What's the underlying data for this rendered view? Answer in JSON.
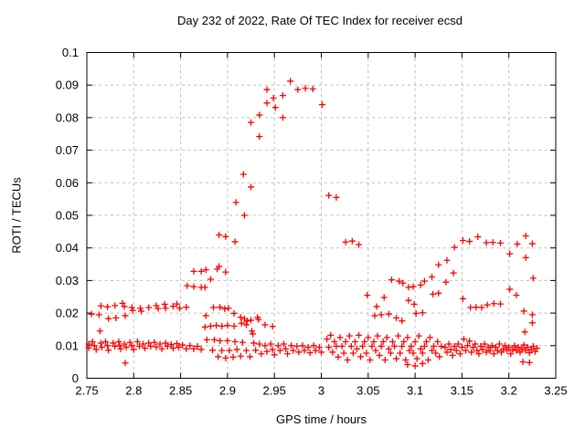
{
  "page": {
    "background": "#ffffff"
  },
  "chart_data": {
    "type": "scatter",
    "title": "Day 232 of 2022, Rate Of TEC Index for receiver ecsd",
    "xlabel": "GPS time / hours",
    "ylabel": "ROTI / TECUs",
    "xlim": [
      2.75,
      3.25
    ],
    "ylim": [
      0,
      0.1
    ],
    "xticks": {
      "values": [
        2.75,
        2.8,
        2.85,
        2.9,
        2.95,
        3.0,
        3.05,
        3.1,
        3.15,
        3.2,
        3.25
      ],
      "labels": [
        "2.75",
        "2.8",
        "2.85",
        "2.9",
        "2.95",
        "3",
        "3.05",
        "3.1",
        "3.15",
        "3.2",
        "3.25"
      ]
    },
    "yticks": {
      "values": [
        0,
        0.01,
        0.02,
        0.03,
        0.04,
        0.05,
        0.06,
        0.07,
        0.08,
        0.09,
        0.1
      ],
      "labels": [
        "0",
        "0.01",
        "0.02",
        "0.03",
        "0.04",
        "0.05",
        "0.06",
        "0.07",
        "0.08",
        "0.09",
        "0.1"
      ]
    },
    "grid": true,
    "legend": null,
    "styles": {
      "marker_shape": "plus",
      "marker_color": "#ff0000",
      "marker_size": 7,
      "grid_color": "#bdbdbd",
      "frame_color": "#000000",
      "text_color": "#000000"
    },
    "points": [
      [
        2.755,
        0.0197
      ],
      [
        2.763,
        0.0195
      ],
      [
        2.765,
        0.0222
      ],
      [
        2.772,
        0.0219
      ],
      [
        2.773,
        0.0183
      ],
      [
        2.78,
        0.0223
      ],
      [
        2.781,
        0.0185
      ],
      [
        2.788,
        0.023
      ],
      [
        2.79,
        0.022
      ],
      [
        2.791,
        0.0192
      ],
      [
        2.798,
        0.0217
      ],
      [
        2.799,
        0.0208
      ],
      [
        2.807,
        0.0215
      ],
      [
        2.808,
        0.0206
      ],
      [
        2.816,
        0.0217
      ],
      [
        2.824,
        0.0223
      ],
      [
        2.826,
        0.0214
      ],
      [
        2.833,
        0.0227
      ],
      [
        2.834,
        0.0215
      ],
      [
        2.842,
        0.0221
      ],
      [
        2.846,
        0.0228
      ],
      [
        2.849,
        0.0215
      ],
      [
        2.856,
        0.0218
      ],
      [
        2.857,
        0.0284
      ],
      [
        2.864,
        0.0281
      ],
      [
        2.872,
        0.0279
      ],
      [
        2.864,
        0.0328
      ],
      [
        2.872,
        0.0328
      ],
      [
        2.752,
        0.0105
      ],
      [
        2.752,
        0.0093
      ],
      [
        2.756,
        0.0112
      ],
      [
        2.758,
        0.01
      ],
      [
        2.76,
        0.0088
      ],
      [
        2.764,
        0.0145
      ],
      [
        2.765,
        0.0108
      ],
      [
        2.766,
        0.0095
      ],
      [
        2.77,
        0.0112
      ],
      [
        2.772,
        0.01
      ],
      [
        2.773,
        0.0086
      ],
      [
        2.778,
        0.0108
      ],
      [
        2.78,
        0.0098
      ],
      [
        2.784,
        0.0112
      ],
      [
        2.785,
        0.01
      ],
      [
        2.786,
        0.009
      ],
      [
        2.79,
        0.0105
      ],
      [
        2.791,
        0.0047
      ],
      [
        2.792,
        0.0095
      ],
      [
        2.796,
        0.011
      ],
      [
        2.798,
        0.01
      ],
      [
        2.8,
        0.0088
      ],
      [
        2.804,
        0.0112
      ],
      [
        2.806,
        0.0098
      ],
      [
        2.81,
        0.0105
      ],
      [
        2.812,
        0.0092
      ],
      [
        2.816,
        0.0108
      ],
      [
        2.818,
        0.0098
      ],
      [
        2.822,
        0.011
      ],
      [
        2.824,
        0.0096
      ],
      [
        2.828,
        0.0105
      ],
      [
        2.83,
        0.009
      ],
      [
        2.834,
        0.0108
      ],
      [
        2.836,
        0.0098
      ],
      [
        2.84,
        0.0104
      ],
      [
        2.842,
        0.0092
      ],
      [
        2.846,
        0.0106
      ],
      [
        2.848,
        0.0095
      ],
      [
        2.852,
        0.0102
      ],
      [
        2.856,
        0.009
      ],
      [
        2.86,
        0.01
      ],
      [
        2.864,
        0.009
      ],
      [
        2.868,
        0.0098
      ],
      [
        2.872,
        0.0088
      ],
      [
        2.876,
        0.0279
      ],
      [
        2.877,
        0.0333
      ],
      [
        2.882,
        0.0304
      ],
      [
        2.889,
        0.0335
      ],
      [
        2.891,
        0.0343
      ],
      [
        2.891,
        0.044
      ],
      [
        2.898,
        0.0435
      ],
      [
        2.898,
        0.0326
      ],
      [
        2.908,
        0.0419
      ],
      [
        2.909,
        0.054
      ],
      [
        2.918,
        0.05
      ],
      [
        2.917,
        0.0626
      ],
      [
        2.925,
        0.0587
      ],
      [
        2.925,
        0.0785
      ],
      [
        2.934,
        0.0742
      ],
      [
        2.934,
        0.0808
      ],
      [
        2.959,
        0.08
      ],
      [
        2.942,
        0.0886
      ],
      [
        2.949,
        0.086
      ],
      [
        2.959,
        0.0868
      ],
      [
        2.942,
        0.0845
      ],
      [
        2.951,
        0.0831
      ],
      [
        2.967,
        0.0912
      ],
      [
        2.975,
        0.0886
      ],
      [
        2.983,
        0.089
      ],
      [
        2.991,
        0.0888
      ],
      [
        3.001,
        0.084
      ],
      [
        2.885,
        0.0217
      ],
      [
        2.892,
        0.0218
      ],
      [
        2.897,
        0.0213
      ],
      [
        2.901,
        0.0215
      ],
      [
        2.907,
        0.0199
      ],
      [
        2.877,
        0.0192
      ],
      [
        2.876,
        0.0157
      ],
      [
        2.882,
        0.016
      ],
      [
        2.888,
        0.0162
      ],
      [
        2.894,
        0.016
      ],
      [
        2.9,
        0.0162
      ],
      [
        2.907,
        0.016
      ],
      [
        2.914,
        0.0187
      ],
      [
        2.918,
        0.0182
      ],
      [
        2.921,
        0.0176
      ],
      [
        2.925,
        0.0178
      ],
      [
        2.915,
        0.0169
      ],
      [
        2.92,
        0.0164
      ],
      [
        2.926,
        0.0145
      ],
      [
        2.927,
        0.0136
      ],
      [
        2.932,
        0.0187
      ],
      [
        2.933,
        0.018
      ],
      [
        2.94,
        0.0164
      ],
      [
        2.948,
        0.0159
      ],
      [
        2.878,
        0.0118
      ],
      [
        2.884,
        0.0086
      ],
      [
        2.886,
        0.0118
      ],
      [
        2.89,
        0.0066
      ],
      [
        2.892,
        0.0115
      ],
      [
        2.894,
        0.0085
      ],
      [
        2.898,
        0.0062
      ],
      [
        2.9,
        0.0115
      ],
      [
        2.902,
        0.0085
      ],
      [
        2.906,
        0.0065
      ],
      [
        2.908,
        0.0112
      ],
      [
        2.91,
        0.0088
      ],
      [
        2.914,
        0.0068
      ],
      [
        2.916,
        0.011
      ],
      [
        2.92,
        0.0085
      ],
      [
        2.924,
        0.0066
      ],
      [
        2.928,
        0.0108
      ],
      [
        2.93,
        0.0086
      ],
      [
        2.934,
        0.0105
      ],
      [
        2.936,
        0.0075
      ],
      [
        2.94,
        0.01
      ],
      [
        2.942,
        0.0082
      ],
      [
        2.946,
        0.0105
      ],
      [
        2.948,
        0.0088
      ],
      [
        2.95,
        0.0072
      ],
      [
        2.954,
        0.01
      ],
      [
        2.956,
        0.0085
      ],
      [
        2.96,
        0.0105
      ],
      [
        2.962,
        0.009
      ],
      [
        2.964,
        0.0075
      ],
      [
        2.968,
        0.01
      ],
      [
        2.97,
        0.0085
      ],
      [
        2.974,
        0.0098
      ],
      [
        2.976,
        0.008
      ],
      [
        2.98,
        0.01
      ],
      [
        2.982,
        0.0085
      ],
      [
        2.986,
        0.0095
      ],
      [
        2.988,
        0.0078
      ],
      [
        2.992,
        0.01
      ],
      [
        2.994,
        0.0085
      ],
      [
        2.998,
        0.0095
      ],
      [
        3.0,
        0.008
      ],
      [
        3.008,
        0.0561
      ],
      [
        3.016,
        0.0555
      ],
      [
        3.026,
        0.0418
      ],
      [
        3.033,
        0.0421
      ],
      [
        3.04,
        0.041
      ],
      [
        3.049,
        0.0255
      ],
      [
        3.057,
        0.0192
      ],
      [
        3.059,
        0.022
      ],
      [
        3.064,
        0.0195
      ],
      [
        3.067,
        0.0248
      ],
      [
        3.072,
        0.0197
      ],
      [
        3.075,
        0.0302
      ],
      [
        3.08,
        0.0185
      ],
      [
        3.083,
        0.0298
      ],
      [
        3.086,
        0.0176
      ],
      [
        3.087,
        0.0292
      ],
      [
        3.093,
        0.0279
      ],
      [
        3.093,
        0.0239
      ],
      [
        3.098,
        0.0281
      ],
      [
        3.099,
        0.0227
      ],
      [
        3.101,
        0.0199
      ],
      [
        3.106,
        0.0286
      ],
      [
        3.108,
        0.0201
      ],
      [
        3.11,
        0.0298
      ],
      [
        3.118,
        0.0311
      ],
      [
        3.119,
        0.0258
      ],
      [
        3.125,
        0.0261
      ],
      [
        3.125,
        0.0348
      ],
      [
        3.006,
        0.012
      ],
      [
        3.008,
        0.0095
      ],
      [
        3.01,
        0.0132
      ],
      [
        3.012,
        0.008
      ],
      [
        3.014,
        0.0112
      ],
      [
        3.016,
        0.0098
      ],
      [
        3.018,
        0.0065
      ],
      [
        3.02,
        0.0125
      ],
      [
        3.022,
        0.0098
      ],
      [
        3.024,
        0.0077
      ],
      [
        3.026,
        0.0112
      ],
      [
        3.028,
        0.0056
      ],
      [
        3.03,
        0.013
      ],
      [
        3.032,
        0.0098
      ],
      [
        3.034,
        0.0077
      ],
      [
        3.036,
        0.0112
      ],
      [
        3.038,
        0.009
      ],
      [
        3.04,
        0.0132
      ],
      [
        3.042,
        0.0066
      ],
      [
        3.044,
        0.0098
      ],
      [
        3.046,
        0.0112
      ],
      [
        3.048,
        0.0077
      ],
      [
        3.05,
        0.0125
      ],
      [
        3.052,
        0.0056
      ],
      [
        3.054,
        0.0098
      ],
      [
        3.056,
        0.0112
      ],
      [
        3.058,
        0.0085
      ],
      [
        3.06,
        0.013
      ],
      [
        3.062,
        0.007
      ],
      [
        3.064,
        0.0098
      ],
      [
        3.066,
        0.0112
      ],
      [
        3.068,
        0.0056
      ],
      [
        3.07,
        0.0125
      ],
      [
        3.072,
        0.009
      ],
      [
        3.074,
        0.0077
      ],
      [
        3.076,
        0.0112
      ],
      [
        3.078,
        0.0098
      ],
      [
        3.08,
        0.006
      ],
      [
        3.082,
        0.013
      ],
      [
        3.084,
        0.0077
      ],
      [
        3.086,
        0.0098
      ],
      [
        3.088,
        0.0112
      ],
      [
        3.09,
        0.0056
      ],
      [
        3.092,
        0.0125
      ],
      [
        3.094,
        0.0085
      ],
      [
        3.096,
        0.0098
      ],
      [
        3.098,
        0.0077
      ],
      [
        3.1,
        0.0112
      ],
      [
        3.102,
        0.006
      ],
      [
        3.104,
        0.013
      ],
      [
        3.106,
        0.009
      ],
      [
        3.108,
        0.0077
      ],
      [
        3.11,
        0.0098
      ],
      [
        3.112,
        0.0112
      ],
      [
        3.114,
        0.0056
      ],
      [
        3.116,
        0.0125
      ],
      [
        3.118,
        0.0085
      ],
      [
        3.12,
        0.0098
      ],
      [
        3.122,
        0.0077
      ],
      [
        3.124,
        0.0112
      ],
      [
        3.126,
        0.0066
      ],
      [
        3.128,
        0.0098
      ],
      [
        3.092,
        0.0042
      ],
      [
        3.1,
        0.0038
      ],
      [
        3.108,
        0.0045
      ],
      [
        3.133,
        0.0295
      ],
      [
        3.134,
        0.0362
      ],
      [
        3.141,
        0.0323
      ],
      [
        3.142,
        0.0402
      ],
      [
        3.151,
        0.0423
      ],
      [
        3.158,
        0.042
      ],
      [
        3.167,
        0.0434
      ],
      [
        3.176,
        0.0416
      ],
      [
        3.183,
        0.0417
      ],
      [
        3.191,
        0.0415
      ],
      [
        3.209,
        0.0412
      ],
      [
        3.218,
        0.0437
      ],
      [
        3.225,
        0.0413
      ],
      [
        3.201,
        0.0382
      ],
      [
        3.218,
        0.037
      ],
      [
        3.151,
        0.0244
      ],
      [
        3.159,
        0.0217
      ],
      [
        3.165,
        0.0218
      ],
      [
        3.171,
        0.0217
      ],
      [
        3.177,
        0.0225
      ],
      [
        3.184,
        0.0229
      ],
      [
        3.191,
        0.0228
      ],
      [
        3.201,
        0.0273
      ],
      [
        3.208,
        0.0255
      ],
      [
        3.226,
        0.0307
      ],
      [
        3.216,
        0.0206
      ],
      [
        3.225,
        0.0195
      ],
      [
        3.225,
        0.017
      ],
      [
        3.217,
        0.0142
      ],
      [
        3.132,
        0.0095
      ],
      [
        3.134,
        0.008
      ],
      [
        3.136,
        0.0105
      ],
      [
        3.138,
        0.0088
      ],
      [
        3.14,
        0.007
      ],
      [
        3.142,
        0.0098
      ],
      [
        3.144,
        0.0085
      ],
      [
        3.146,
        0.0105
      ],
      [
        3.148,
        0.0075
      ],
      [
        3.15,
        0.0095
      ],
      [
        3.152,
        0.012
      ],
      [
        3.154,
        0.0085
      ],
      [
        3.156,
        0.01
      ],
      [
        3.158,
        0.0114
      ],
      [
        3.16,
        0.008
      ],
      [
        3.162,
        0.0095
      ],
      [
        3.164,
        0.0105
      ],
      [
        3.166,
        0.0085
      ],
      [
        3.168,
        0.0075
      ],
      [
        3.17,
        0.0098
      ],
      [
        3.172,
        0.0088
      ],
      [
        3.174,
        0.0105
      ],
      [
        3.176,
        0.008
      ],
      [
        3.178,
        0.0095
      ],
      [
        3.18,
        0.0085
      ],
      [
        3.182,
        0.01
      ],
      [
        3.184,
        0.0075
      ],
      [
        3.186,
        0.0095
      ],
      [
        3.188,
        0.0085
      ],
      [
        3.19,
        0.0105
      ],
      [
        3.192,
        0.008
      ],
      [
        3.194,
        0.009
      ],
      [
        3.196,
        0.01
      ],
      [
        3.198,
        0.0085
      ],
      [
        3.2,
        0.0095
      ],
      [
        3.202,
        0.0075
      ],
      [
        3.204,
        0.0088
      ],
      [
        3.206,
        0.01
      ],
      [
        3.208,
        0.0085
      ],
      [
        3.21,
        0.0095
      ],
      [
        3.212,
        0.008
      ],
      [
        3.214,
        0.009
      ],
      [
        3.216,
        0.0102
      ],
      [
        3.218,
        0.0085
      ],
      [
        3.22,
        0.0095
      ],
      [
        3.222,
        0.0078
      ],
      [
        3.224,
        0.0088
      ],
      [
        3.226,
        0.0098
      ],
      [
        3.228,
        0.0082
      ],
      [
        3.23,
        0.0092
      ],
      [
        3.215,
        0.005
      ],
      [
        3.222,
        0.0048
      ]
    ]
  }
}
